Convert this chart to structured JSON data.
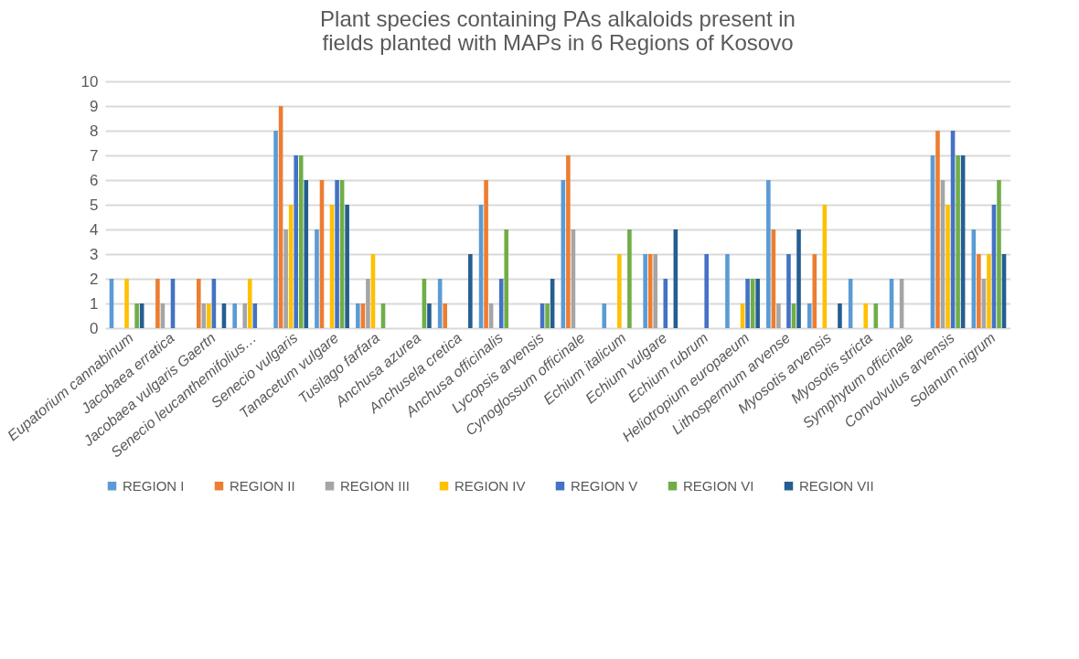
{
  "chart_data": {
    "type": "bar",
    "title": "Plant species containing PAs alkaloids present in fields planted with MAPs in 6 Regions of Kosovo",
    "categories": [
      "Eupatorium cannabinum",
      "Jacobaea erratica",
      "Jacobaea vulgaris Gaertn",
      "Senecio leucanthemifolius…",
      "Senecio vulgaris",
      "Tanacetum vulgare",
      "Tusilago farfara",
      "Anchusa azurea",
      "Anchusela cretica",
      "Anchusa officinalis",
      "Lycopsis arvensis",
      "Cynoglossum officinale",
      "Echium italicum",
      "Echium vulgare",
      "Echium rubrum",
      "Heliotropium europaeum",
      "Lithospermum arvense",
      "Myosotis arvensis",
      "Myosotis stricta",
      "Symphytum officinale",
      "Convolvulus arvensis",
      "Solanum nigrum"
    ],
    "series": [
      {
        "name": "REGION I",
        "color": "#5b9bd5",
        "values": [
          2,
          0,
          0,
          1,
          8,
          4,
          1,
          0,
          2,
          5,
          0,
          6,
          1,
          3,
          0,
          3,
          6,
          1,
          2,
          2,
          7,
          4
        ]
      },
      {
        "name": "REGION II",
        "color": "#ed7d31",
        "values": [
          0,
          2,
          2,
          0,
          9,
          6,
          1,
          0,
          1,
          6,
          0,
          7,
          0,
          3,
          0,
          0,
          4,
          3,
          0,
          0,
          8,
          3
        ]
      },
      {
        "name": "REGION III",
        "color": "#a5a5a5",
        "values": [
          0,
          1,
          1,
          1,
          4,
          0,
          2,
          0,
          0,
          1,
          0,
          4,
          0,
          3,
          0,
          0,
          1,
          0,
          0,
          2,
          6,
          2
        ]
      },
      {
        "name": "REGION IV",
        "color": "#ffc000",
        "values": [
          2,
          0,
          1,
          2,
          5,
          5,
          3,
          0,
          0,
          0,
          0,
          0,
          3,
          0,
          0,
          1,
          0,
          5,
          1,
          0,
          5,
          3
        ]
      },
      {
        "name": "REGION V",
        "color": "#4472c4",
        "values": [
          0,
          2,
          2,
          1,
          7,
          6,
          0,
          0,
          0,
          2,
          1,
          0,
          0,
          2,
          3,
          2,
          3,
          0,
          0,
          0,
          8,
          5
        ]
      },
      {
        "name": "REGION VI",
        "color": "#70ad47",
        "values": [
          1,
          0,
          0,
          0,
          7,
          6,
          1,
          2,
          0,
          4,
          1,
          0,
          4,
          0,
          0,
          2,
          1,
          0,
          1,
          0,
          7,
          6
        ]
      },
      {
        "name": "REGION VII",
        "color": "#255e91",
        "values": [
          1,
          0,
          1,
          0,
          6,
          5,
          0,
          1,
          3,
          0,
          2,
          0,
          0,
          4,
          0,
          2,
          4,
          1,
          0,
          0,
          7,
          3
        ]
      }
    ],
    "ylim": [
      0,
      10
    ],
    "yticks": [
      0,
      1,
      2,
      3,
      4,
      5,
      6,
      7,
      8,
      9,
      10
    ],
    "grid": "y",
    "legend": "bottom"
  }
}
